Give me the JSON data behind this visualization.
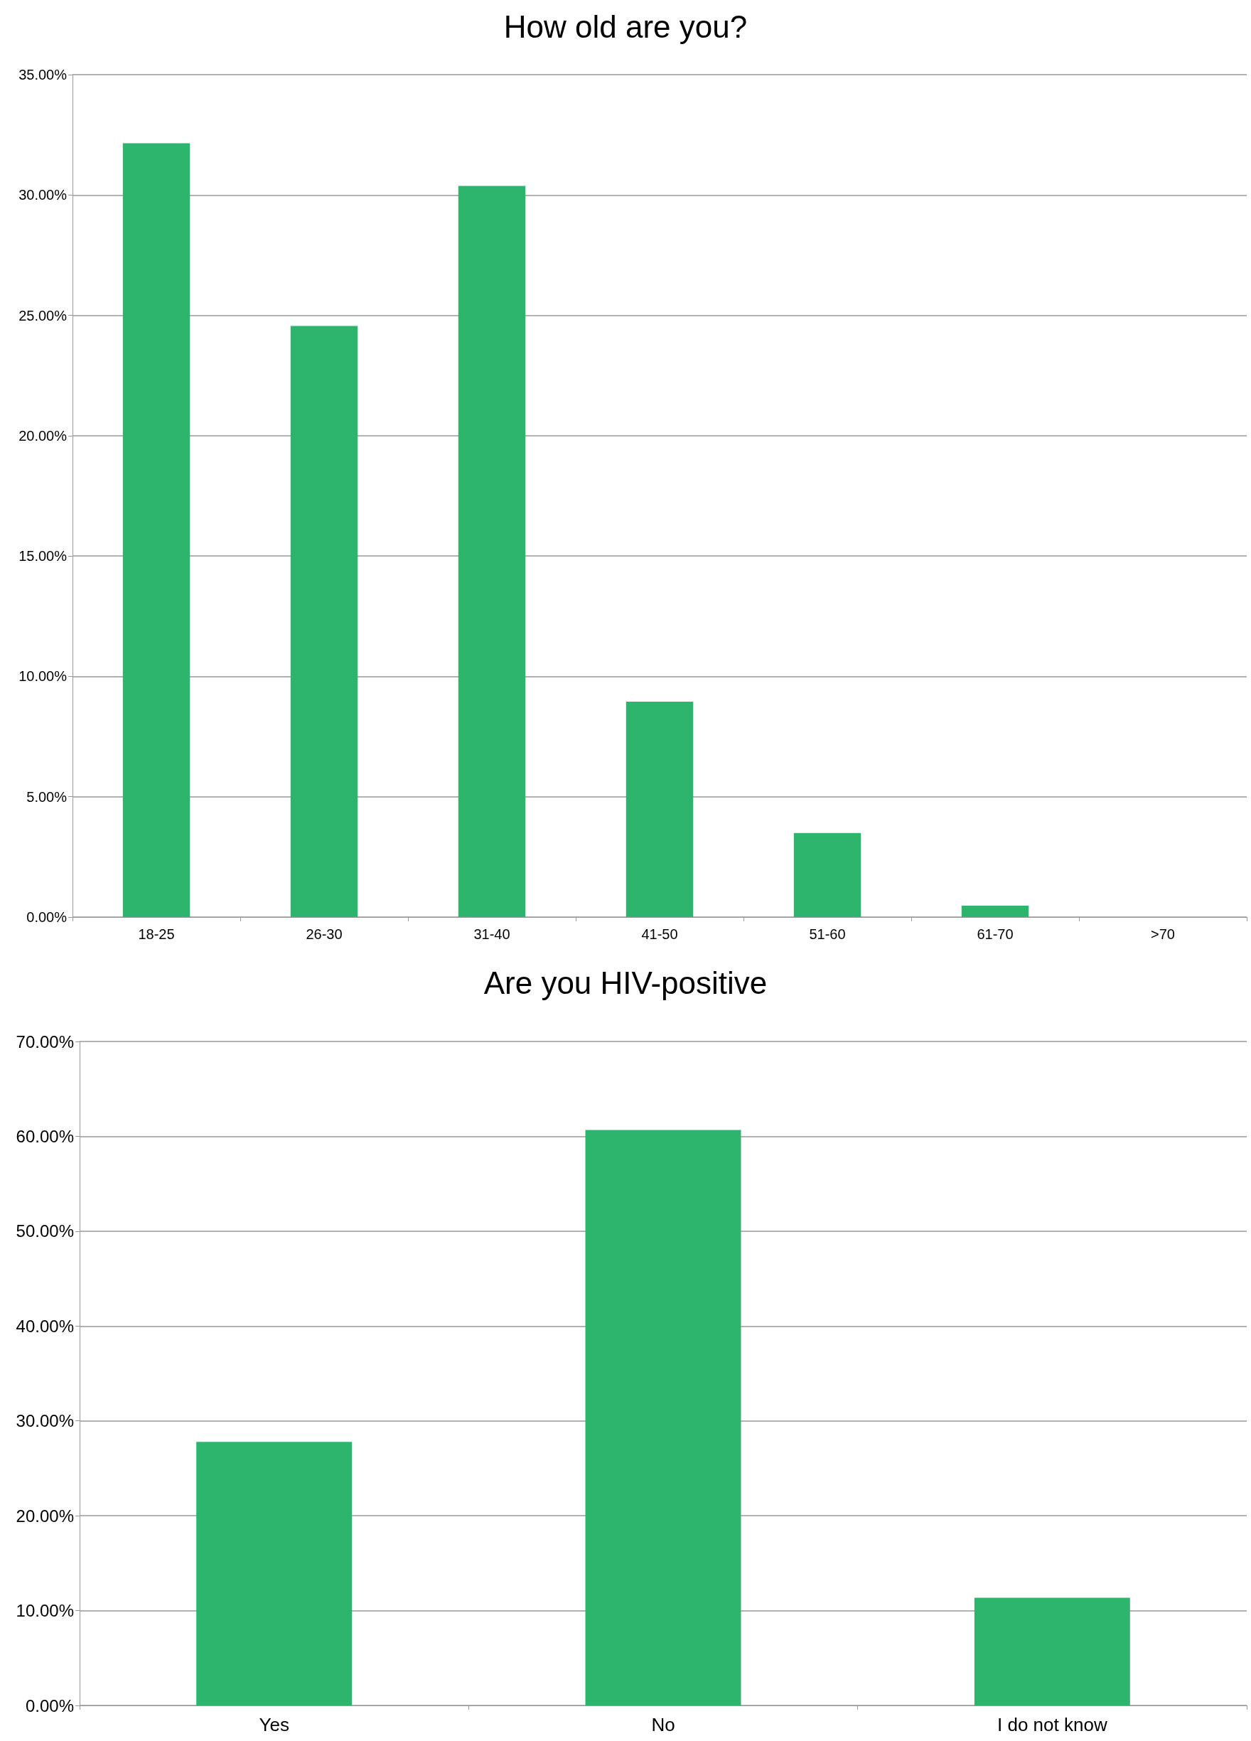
{
  "chart_data": [
    {
      "type": "bar",
      "title": "How old are you?",
      "categories": [
        "18-25",
        "26-30",
        "31-40",
        "41-50",
        "51-60",
        "61-70",
        ">70"
      ],
      "values": [
        32.15,
        24.56,
        30.38,
        8.95,
        3.49,
        0.47,
        0
      ],
      "color": "#2db56e",
      "ylim": [
        0,
        35
      ],
      "yticks": [
        {
          "value": 0,
          "label": "0.00%"
        },
        {
          "value": 5,
          "label": "5.00%"
        },
        {
          "value": 10,
          "label": "10.00%"
        },
        {
          "value": 15,
          "label": "15.00%"
        },
        {
          "value": 20,
          "label": "20.00%"
        },
        {
          "value": 25,
          "label": "25.00%"
        },
        {
          "value": 30,
          "label": "30.00%"
        },
        {
          "value": 35,
          "label": "35.00%"
        }
      ],
      "grid": "y"
    },
    {
      "type": "bar",
      "title": "Are you HIV-positive",
      "categories": [
        "Yes",
        "No",
        "I do not know"
      ],
      "values": [
        27.79,
        60.66,
        11.35
      ],
      "color": "#2db56e",
      "ylim": [
        0,
        70
      ],
      "yticks": [
        {
          "value": 0,
          "label": "0.00%"
        },
        {
          "value": 10,
          "label": "10.00%"
        },
        {
          "value": 20,
          "label": "20.00%"
        },
        {
          "value": 30,
          "label": "30.00%"
        },
        {
          "value": 40,
          "label": "40.00%"
        },
        {
          "value": 50,
          "label": "50.00%"
        },
        {
          "value": 60,
          "label": "60.00%"
        },
        {
          "value": 70,
          "label": "70.00%"
        }
      ],
      "grid": "y"
    }
  ]
}
